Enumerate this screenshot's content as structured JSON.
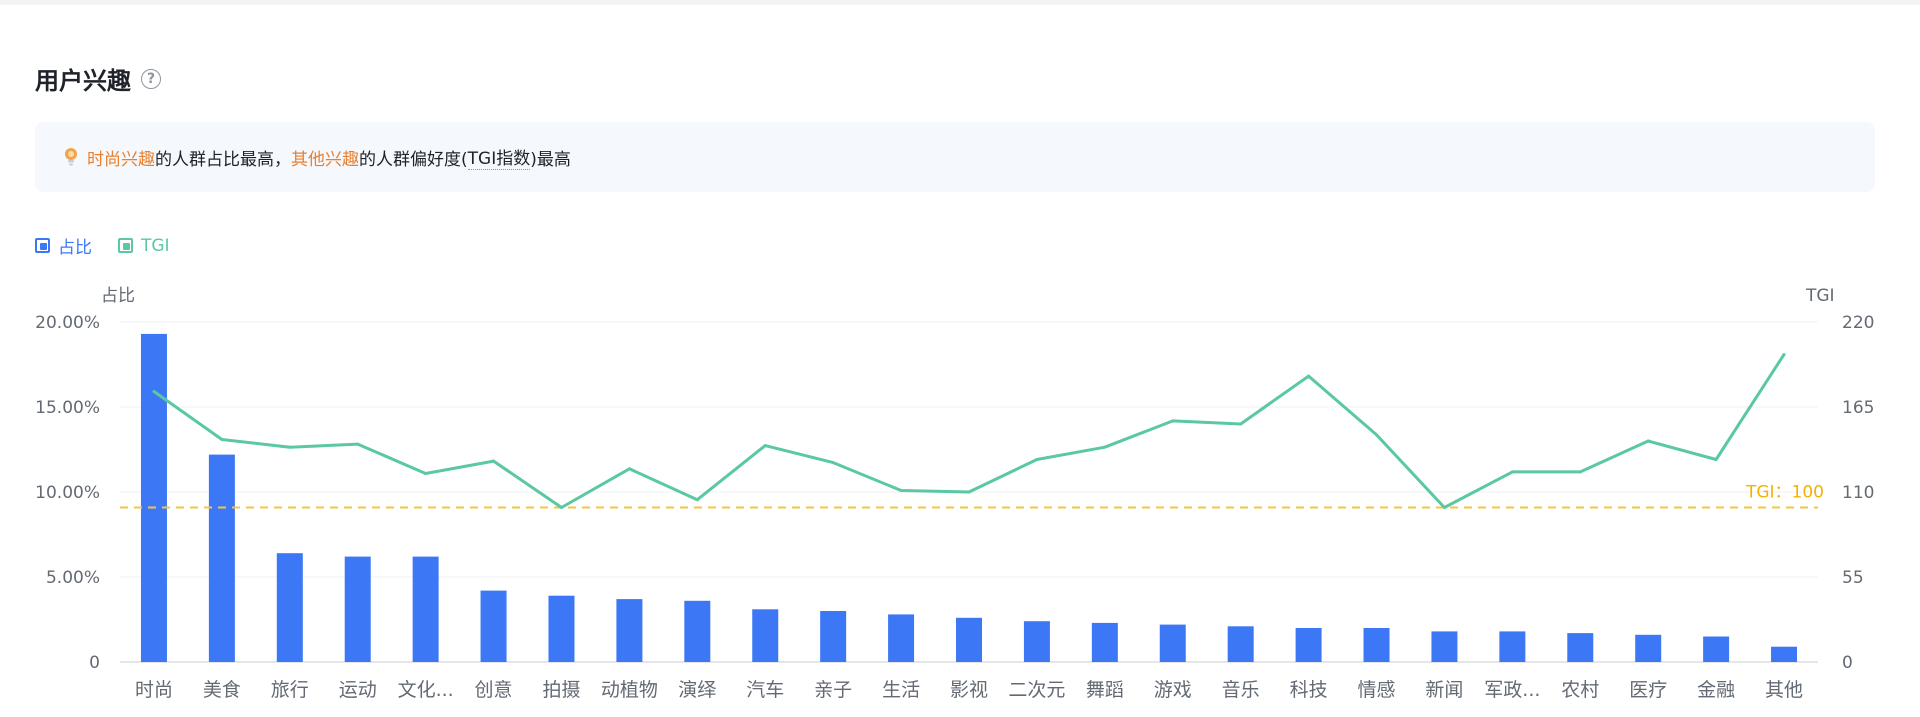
{
  "header": {
    "title": "用户兴趣",
    "help_icon": "help-circle-icon"
  },
  "insight": {
    "icon": "bulb-icon",
    "hl1": "时尚兴趣",
    "t1": "的人群占比最高，",
    "hl2": "其他兴趣",
    "t2": "的人群偏好度(",
    "t3": "TGI指数",
    "t4": ")最高"
  },
  "legend": [
    {
      "label": "占比",
      "color": "#3c78f5"
    },
    {
      "label": "TGI",
      "color": "#5ac8a0"
    }
  ],
  "colors": {
    "bar": "#3c78f5",
    "line": "#5ac8a0",
    "ref_line": "#f5c442",
    "ref_text": "#f0b400"
  },
  "chart_data": {
    "type": "bar",
    "categories": [
      "时尚",
      "美食",
      "旅行",
      "运动",
      "文化...",
      "创意",
      "拍摄",
      "动植物",
      "演绎",
      "汽车",
      "亲子",
      "生活",
      "影视",
      "二次元",
      "舞蹈",
      "游戏",
      "音乐",
      "科技",
      "情感",
      "新闻",
      "军政...",
      "农村",
      "医疗",
      "金融",
      "其他"
    ],
    "series": [
      {
        "name": "占比",
        "type": "bar",
        "axis": "left",
        "values": [
          19.3,
          12.2,
          6.4,
          6.2,
          6.2,
          4.2,
          3.9,
          3.7,
          3.6,
          3.1,
          3.0,
          2.8,
          2.6,
          2.4,
          2.3,
          2.2,
          2.1,
          2.0,
          2.0,
          1.8,
          1.8,
          1.7,
          1.6,
          1.5,
          0.9
        ]
      },
      {
        "name": "TGI",
        "type": "line",
        "axis": "right",
        "values": [
          175,
          144,
          139,
          141,
          122,
          130,
          100,
          125,
          105,
          140,
          129,
          111,
          110,
          131,
          139,
          156,
          154,
          185,
          147,
          100,
          123,
          123,
          143,
          131,
          199
        ]
      }
    ],
    "y_left": {
      "label": "占比",
      "min": 0,
      "max": 20,
      "ticks": [
        "0",
        "5.00%",
        "10.00%",
        "15.00%",
        "20.00%"
      ]
    },
    "y_right": {
      "label": "TGI",
      "min": 0,
      "max": 220,
      "ticks": [
        "0",
        "55",
        "110",
        "165",
        "220"
      ]
    },
    "reference_line": {
      "value": 100,
      "axis": "right",
      "label": "TGI：100"
    },
    "grid": true,
    "legend_position": "top-left"
  }
}
